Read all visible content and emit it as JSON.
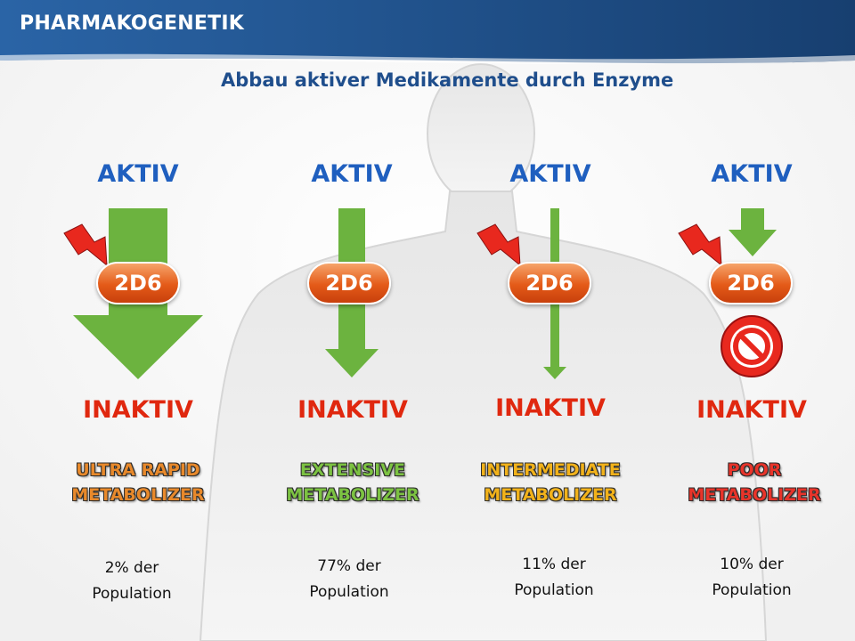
{
  "header": {
    "title": "PHARMAKOGENETIK"
  },
  "subtitle": "Abbau aktiver Medikamente durch Enzyme",
  "columns": [
    {
      "top_label": "AKTIV",
      "enzyme": "2D6",
      "bottom_label": "INAKTIV",
      "type_line1": "ULTRA RAPID",
      "type_line2": "METABOLIZER",
      "type_color": "#e8892b",
      "pop_line1": "2% der",
      "pop_line2": "Population"
    },
    {
      "top_label": "AKTIV",
      "enzyme": "2D6",
      "bottom_label": "INAKTIV",
      "type_line1": "EXTENSIVE",
      "type_line2": "METABOLIZER",
      "type_color": "#7cc242",
      "pop_line1": "77% der",
      "pop_line2": "Population"
    },
    {
      "top_label": "AKTIV",
      "enzyme": "2D6",
      "bottom_label": "INAKTIV",
      "type_line1": "INTERMEDIATE",
      "type_line2": "METABOLIZER",
      "type_color": "#f2b21a",
      "pop_line1": "11% der",
      "pop_line2": "Population"
    },
    {
      "top_label": "AKTIV",
      "enzyme": "2D6",
      "bottom_label": "INAKTIV",
      "type_line1": "POOR",
      "type_line2": "METABOLIZER",
      "type_color": "#e8342a",
      "pop_line1": "10% der",
      "pop_line2": "Population"
    }
  ],
  "colors": {
    "header": "#1f4f86",
    "arrow": "#6cb33f",
    "enzyme": "#e45a18",
    "lightning": "#e8281e",
    "blocked": "#e8281e"
  },
  "icons": [
    "lightning-icon",
    "blocked-icon"
  ]
}
